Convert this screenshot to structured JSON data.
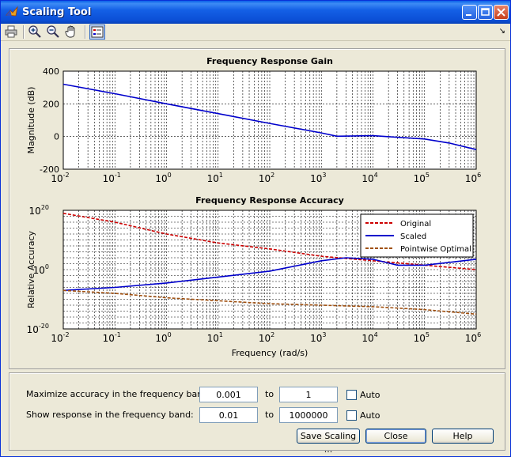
{
  "window": {
    "title": "Scaling Tool"
  },
  "toolbar": {
    "icons": [
      "print-icon",
      "zoom-in-icon",
      "zoom-out-icon",
      "pan-hand-icon",
      "legend-toggle-icon"
    ]
  },
  "controls": {
    "accuracy_label": "Maximize accuracy in the frequency band:",
    "accuracy_from": "0.001",
    "accuracy_to": "1",
    "response_label": "Show response in the frequency band:",
    "response_from": "0.01",
    "response_to": "1000000",
    "to_label": "to",
    "auto_label": "Auto"
  },
  "buttons": {
    "save": "Save Scaling ...",
    "close": "Close",
    "help": "Help"
  },
  "chart_data": [
    {
      "type": "line",
      "title": "Frequency Response Gain",
      "xlabel": "",
      "ylabel": "Magnitude (dB)",
      "xscale": "log",
      "xlim": [
        0.01,
        1000000
      ],
      "ylim": [
        -200,
        400
      ],
      "yticks": [
        "400",
        "200",
        "0",
        "-200"
      ],
      "xtick_exponents": [
        "-2",
        "-1",
        "0",
        "1",
        "2",
        "3",
        "4",
        "5",
        "6"
      ],
      "grid": true,
      "series": [
        {
          "color": "#0000cc",
          "x": [
            0.01,
            0.1,
            1,
            10,
            100,
            1000,
            2000,
            10000,
            100000,
            300000,
            1000000
          ],
          "y": [
            320,
            262,
            200,
            140,
            80,
            22,
            2,
            5,
            -15,
            -40,
            -80
          ]
        }
      ]
    },
    {
      "type": "line",
      "title": "Frequency Response Accuracy",
      "xlabel": "Frequency (rad/s)",
      "ylabel": "Relative Accuracy",
      "xscale": "log",
      "yscale": "log",
      "xlim": [
        0.01,
        1000000
      ],
      "ylim_exp": [
        -20,
        20
      ],
      "ytick_exponents": [
        "20",
        "0",
        "-20"
      ],
      "xtick_exponents": [
        "-2",
        "-1",
        "0",
        "1",
        "2",
        "3",
        "4",
        "5",
        "6"
      ],
      "grid": true,
      "legend": "top-right",
      "series": [
        {
          "name": "Original",
          "color": "#cc0000",
          "dash": true,
          "x": [
            0.01,
            0.1,
            1,
            10,
            100,
            1000,
            10000,
            100000,
            1000000
          ],
          "y_exp": [
            19,
            16,
            12,
            9,
            7,
            4.5,
            3,
            1.5,
            0
          ]
        },
        {
          "name": "Scaled",
          "color": "#0000cc",
          "dash": false,
          "x": [
            0.01,
            0.1,
            1,
            10,
            100,
            1000,
            3000,
            10000,
            30000,
            100000,
            1000000
          ],
          "y_exp": [
            -7,
            -6,
            -4.5,
            -2.5,
            -0.5,
            3,
            4,
            3.5,
            1.5,
            1.5,
            3.5
          ]
        },
        {
          "name": "Pointwise Optimal",
          "color": "#a05010",
          "dash": true,
          "x": [
            0.01,
            0.1,
            1,
            10,
            100,
            1000,
            10000,
            100000,
            1000000
          ],
          "y_exp": [
            -7,
            -8,
            -9.5,
            -10.5,
            -11.5,
            -12,
            -12.5,
            -13.5,
            -15
          ]
        }
      ]
    }
  ]
}
